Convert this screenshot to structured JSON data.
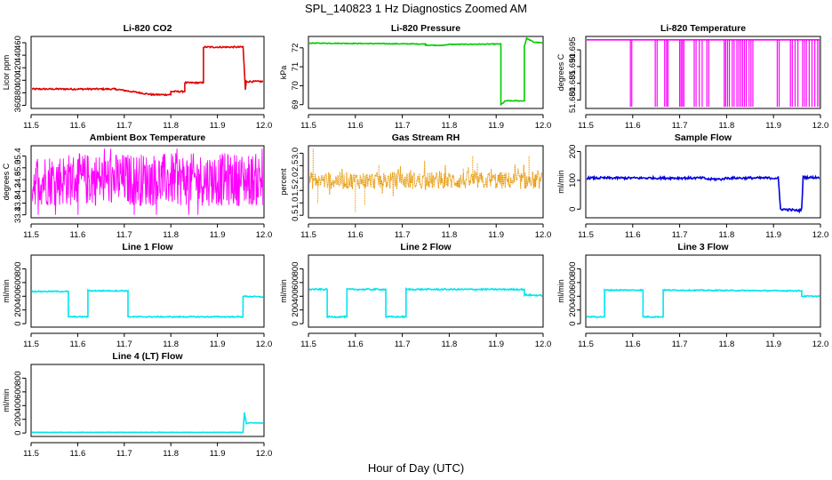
{
  "figure": {
    "title": "SPL_140823  1 Hz Diagnostics Zoomed AM",
    "xlabel": "Hour of Day (UTC)"
  },
  "chart_data": [
    {
      "type": "line",
      "title": "Li-820 CO2",
      "ylabel": "Licor ppm",
      "color": "#e00000",
      "xlim": [
        11.5,
        12.0
      ],
      "ylim": [
        355,
        470
      ],
      "xticks": [
        "11.5",
        "11.6",
        "11.7",
        "11.8",
        "11.9",
        "12.0"
      ],
      "yticks": [
        {
          "v": 360,
          "label": "360"
        },
        {
          "v": 380,
          "label": "380"
        },
        {
          "v": 400,
          "label": "400"
        },
        {
          "v": 420,
          "label": "420"
        },
        {
          "v": 440,
          "label": "440"
        },
        {
          "v": 460,
          "label": "460"
        }
      ],
      "series": [
        {
          "name": "Li-820 CO2",
          "segments": [
            [
              11.5,
              386
            ],
            [
              11.68,
              386
            ],
            [
              11.68,
              386
            ],
            [
              11.76,
              377
            ],
            [
              11.76,
              377
            ],
            [
              11.8,
              377
            ],
            [
              11.8,
              382
            ],
            [
              11.83,
              382
            ],
            [
              11.83,
              396
            ],
            [
              11.87,
              396
            ],
            [
              11.87,
              453
            ],
            [
              11.955,
              453
            ],
            [
              11.955,
              455
            ],
            [
              11.96,
              385
            ],
            [
              11.962,
              398
            ],
            [
              12.0,
              398
            ]
          ],
          "noise": 1.2
        }
      ]
    },
    {
      "type": "line",
      "title": "Li-820 Pressure",
      "ylabel": "kPa",
      "color": "#00cc00",
      "xlim": [
        11.5,
        12.0
      ],
      "ylim": [
        68.8,
        72.6
      ],
      "xticks": [
        "11.5",
        "11.6",
        "11.7",
        "11.8",
        "11.9",
        "12.0"
      ],
      "yticks": [
        {
          "v": 69,
          "label": "69"
        },
        {
          "v": 70,
          "label": "70"
        },
        {
          "v": 71,
          "label": "71"
        },
        {
          "v": 72,
          "label": "72"
        }
      ],
      "series": [
        {
          "name": "Li-820 Pressure",
          "segments": [
            [
              11.5,
              72.25
            ],
            [
              11.75,
              72.2
            ],
            [
              11.75,
              72.15
            ],
            [
              11.78,
              72.12
            ],
            [
              11.8,
              72.18
            ],
            [
              11.91,
              72.2
            ],
            [
              11.91,
              69.0
            ],
            [
              11.92,
              69.2
            ],
            [
              11.96,
              69.2
            ],
            [
              11.96,
              72.1
            ],
            [
              11.965,
              72.5
            ],
            [
              11.98,
              72.3
            ],
            [
              12.0,
              72.25
            ]
          ],
          "noise": 0.02
        }
      ]
    },
    {
      "type": "line",
      "title": "Li-820 Temperature",
      "ylabel": "degrees C",
      "color": "#ff00ff",
      "xlim": [
        11.5,
        12.0
      ],
      "ylim": [
        51.6775,
        51.699
      ],
      "xticks": [
        "11.5",
        "11.6",
        "11.7",
        "11.8",
        "11.9",
        "12.0"
      ],
      "yticks": [
        {
          "v": 51.68,
          "label": "51.680"
        },
        {
          "v": 51.685,
          "label": "51.685"
        },
        {
          "v": 51.69,
          "label": "51.690"
        },
        {
          "v": 51.695,
          "label": "51.695"
        }
      ],
      "series": [
        {
          "name": "Li-820 Temperature",
          "level": 51.698,
          "drop": 51.678,
          "drop_times": [
            11.595,
            11.598,
            11.648,
            11.652,
            11.668,
            11.672,
            11.675,
            11.7,
            11.703,
            11.706,
            11.709,
            11.731,
            11.735,
            11.742,
            11.748,
            11.758,
            11.762,
            11.795,
            11.798,
            11.802,
            11.806,
            11.812,
            11.816,
            11.822,
            11.826,
            11.83,
            11.834,
            11.838,
            11.842,
            11.848,
            11.852,
            11.856,
            11.908,
            11.912,
            11.936,
            11.94,
            11.946,
            11.952,
            11.962,
            11.966,
            11.97,
            11.976,
            11.982,
            11.988,
            11.994,
            11.998
          ]
        }
      ]
    },
    {
      "type": "line",
      "title": "Ambient Box Temperature",
      "ylabel": "degrees C",
      "color": "#ff00ff",
      "xlim": [
        11.5,
        12.0
      ],
      "ylim": [
        33.3,
        35.75
      ],
      "xticks": [
        "11.5",
        "11.6",
        "11.7",
        "11.8",
        "11.9",
        "12.0"
      ],
      "yticks": [
        {
          "v": 33.4,
          "label": "33.4"
        },
        {
          "v": 33.8,
          "label": "33.8"
        },
        {
          "v": 34.2,
          "label": "34.2"
        },
        {
          "v": 34.6,
          "label": "34.6"
        },
        {
          "v": 35.0,
          "label": "35.0"
        },
        {
          "v": 35.4,
          "label": "35.4"
        }
      ],
      "series": [
        {
          "name": "Ambient Box Temperature",
          "oscillate": [
            33.7,
            35.5
          ],
          "spikes": [
            33.4,
            35.65
          ]
        }
      ]
    },
    {
      "type": "scatter",
      "title": "Gas Stream RH",
      "ylabel": "percent",
      "color": "#e69500",
      "xlim": [
        11.5,
        12.0
      ],
      "ylim": [
        0.4,
        3.3
      ],
      "xticks": [
        "11.5",
        "11.6",
        "11.7",
        "11.8",
        "11.9",
        "12.0"
      ],
      "yticks": [
        {
          "v": 0.5,
          "label": "0.5"
        },
        {
          "v": 1.0,
          "label": "1.0"
        },
        {
          "v": 1.5,
          "label": "1.5"
        },
        {
          "v": 2.0,
          "label": "2.0"
        },
        {
          "v": 2.5,
          "label": "2.5"
        },
        {
          "v": 3.0,
          "label": "3.0"
        }
      ],
      "series": [
        {
          "name": "Gas Stream RH",
          "center": 1.9,
          "band": 0.35,
          "outliers": [
            [
              11.51,
              3.2
            ],
            [
              11.6,
              0.6
            ],
            [
              11.65,
              2.55
            ],
            [
              11.83,
              2.4
            ],
            [
              11.85,
              2.9
            ],
            [
              11.86,
              2.6
            ],
            [
              11.97,
              2.9
            ],
            [
              11.52,
              1.0
            ],
            [
              11.62,
              0.9
            ]
          ]
        }
      ]
    },
    {
      "type": "line",
      "title": "Sample Flow",
      "ylabel": "ml/min",
      "color": "#0000dd",
      "xlim": [
        11.5,
        12.0
      ],
      "ylim": [
        -30,
        220
      ],
      "xticks": [
        "11.5",
        "11.6",
        "11.7",
        "11.8",
        "11.9",
        "12.0"
      ],
      "yticks": [
        {
          "v": 0,
          "label": "0"
        },
        {
          "v": 100,
          "label": "100"
        },
        {
          "v": 200,
          "label": "200"
        }
      ],
      "series": [
        {
          "name": "Sample Flow",
          "segments": [
            [
              11.5,
              108
            ],
            [
              11.75,
              108
            ],
            [
              11.76,
              104
            ],
            [
              11.79,
              104
            ],
            [
              11.8,
              108
            ],
            [
              11.91,
              108
            ],
            [
              11.915,
              0
            ],
            [
              11.955,
              -5
            ],
            [
              11.96,
              0
            ],
            [
              11.963,
              110
            ],
            [
              12.0,
              110
            ]
          ],
          "noise": 4
        }
      ]
    },
    {
      "type": "line",
      "title": "Line 1 Flow",
      "ylabel": "ml/min",
      "color": "#00e5ee",
      "xlim": [
        11.5,
        12.0
      ],
      "ylim": [
        -50,
        1000
      ],
      "xticks": [
        "11.5",
        "11.6",
        "11.7",
        "11.8",
        "11.9",
        "12.0"
      ],
      "yticks": [
        {
          "v": 0,
          "label": "0"
        },
        {
          "v": 200,
          "label": "200"
        },
        {
          "v": 400,
          "label": "400"
        },
        {
          "v": 600,
          "label": "600"
        },
        {
          "v": 800,
          "label": "800"
        }
      ],
      "series": [
        {
          "name": "Line 1 Flow",
          "segments": [
            [
              11.5,
              470
            ],
            [
              11.58,
              470
            ],
            [
              11.58,
              100
            ],
            [
              11.622,
              100
            ],
            [
              11.622,
              480
            ],
            [
              11.708,
              480
            ],
            [
              11.708,
              100
            ],
            [
              11.955,
              100
            ],
            [
              11.955,
              400
            ],
            [
              12.0,
              390
            ]
          ],
          "noise": 8
        }
      ]
    },
    {
      "type": "line",
      "title": "Line 2 Flow",
      "ylabel": "ml/min",
      "color": "#00e5ee",
      "xlim": [
        11.5,
        12.0
      ],
      "ylim": [
        -50,
        1000
      ],
      "xticks": [
        "11.5",
        "11.6",
        "11.7",
        "11.8",
        "11.9",
        "12.0"
      ],
      "yticks": [
        {
          "v": 0,
          "label": "0"
        },
        {
          "v": 200,
          "label": "200"
        },
        {
          "v": 400,
          "label": "400"
        },
        {
          "v": 600,
          "label": "600"
        },
        {
          "v": 800,
          "label": "800"
        }
      ],
      "series": [
        {
          "name": "Line 2 Flow",
          "segments": [
            [
              11.5,
              500
            ],
            [
              11.54,
              500
            ],
            [
              11.54,
              100
            ],
            [
              11.582,
              100
            ],
            [
              11.582,
              500
            ],
            [
              11.665,
              500
            ],
            [
              11.665,
              100
            ],
            [
              11.708,
              100
            ],
            [
              11.708,
              500
            ],
            [
              11.96,
              500
            ],
            [
              11.96,
              420
            ],
            [
              12.0,
              410
            ]
          ],
          "noise": 10
        }
      ]
    },
    {
      "type": "line",
      "title": "Line 3 Flow",
      "ylabel": "ml/min",
      "color": "#00e5ee",
      "xlim": [
        11.5,
        12.0
      ],
      "ylim": [
        -50,
        1000
      ],
      "xticks": [
        "11.5",
        "11.6",
        "11.7",
        "11.8",
        "11.9",
        "12.0"
      ],
      "yticks": [
        {
          "v": 0,
          "label": "0"
        },
        {
          "v": 200,
          "label": "200"
        },
        {
          "v": 400,
          "label": "400"
        },
        {
          "v": 600,
          "label": "600"
        },
        {
          "v": 800,
          "label": "800"
        }
      ],
      "series": [
        {
          "name": "Line 3 Flow",
          "segments": [
            [
              11.5,
              100
            ],
            [
              11.54,
              100
            ],
            [
              11.54,
              490
            ],
            [
              11.622,
              490
            ],
            [
              11.622,
              100
            ],
            [
              11.665,
              100
            ],
            [
              11.665,
              490
            ],
            [
              11.91,
              480
            ],
            [
              11.96,
              480
            ],
            [
              11.96,
              400
            ],
            [
              12.0,
              400
            ]
          ],
          "noise": 8
        }
      ]
    },
    {
      "type": "line",
      "title": "Line 4 (LT) Flow",
      "ylabel": "ml/min",
      "color": "#00e5ee",
      "xlim": [
        11.5,
        12.0
      ],
      "ylim": [
        -50,
        1000
      ],
      "xticks": [
        "11.5",
        "11.6",
        "11.7",
        "11.8",
        "11.9",
        "12.0"
      ],
      "yticks": [
        {
          "v": 0,
          "label": "0"
        },
        {
          "v": 200,
          "label": "200"
        },
        {
          "v": 400,
          "label": "400"
        },
        {
          "v": 600,
          "label": "600"
        },
        {
          "v": 800,
          "label": "800"
        }
      ],
      "series": [
        {
          "name": "Line 4 (LT) Flow",
          "segments": [
            [
              11.5,
              10
            ],
            [
              11.955,
              10
            ],
            [
              11.958,
              300
            ],
            [
              11.962,
              140
            ],
            [
              11.97,
              150
            ],
            [
              12.0,
              145
            ]
          ],
          "noise": 2
        }
      ]
    }
  ]
}
